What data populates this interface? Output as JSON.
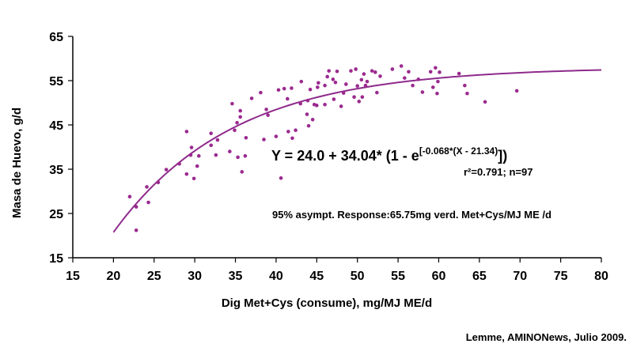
{
  "chart_data": {
    "type": "scatter",
    "xlabel": "Dig Met+Cys (consume), mg/MJ ME/d",
    "ylabel": "Masa de Huevo, g/d",
    "xlim": [
      15,
      80
    ],
    "ylim": [
      15,
      65
    ],
    "xticks": [
      "15",
      "20",
      "25",
      "30",
      "35",
      "40",
      "45",
      "50",
      "55",
      "60",
      "65",
      "70",
      "75",
      "80"
    ],
    "yticks": [
      "15",
      "25",
      "35",
      "45",
      "55",
      "65"
    ],
    "grid": false,
    "colors": {
      "points": "#9b2a8f",
      "curve": "#8e2a8c"
    },
    "equation": {
      "main": "Y = 24.0 + 34.04* (1 - e",
      "exponent": "[-0.068*(X - 21.34)",
      "close": "])"
    },
    "fit_stats": "r²=0.791; n=97",
    "asymptote_note": "95% asympt. Response:65.75mg verd. Met+Cys/MJ ME /d",
    "source": "Lemme, AMINONews, Julio 2009.",
    "curve": {
      "a": 24.0,
      "b": 34.04,
      "k": 0.068,
      "x0": 21.34,
      "x_from": 20,
      "x_to": 80
    },
    "points": [
      [
        22.0,
        28.8
      ],
      [
        22.8,
        21.2
      ],
      [
        22.8,
        26.5
      ],
      [
        24.1,
        31.0
      ],
      [
        24.3,
        27.5
      ],
      [
        25.5,
        32.0
      ],
      [
        26.5,
        34.9
      ],
      [
        28.1,
        36.2
      ],
      [
        29.0,
        43.5
      ],
      [
        29.0,
        33.9
      ],
      [
        29.5,
        38.2
      ],
      [
        29.6,
        39.9
      ],
      [
        29.9,
        32.9
      ],
      [
        30.3,
        35.7
      ],
      [
        30.5,
        38.0
      ],
      [
        32.0,
        43.1
      ],
      [
        32.0,
        40.4
      ],
      [
        32.6,
        38.2
      ],
      [
        32.8,
        41.6
      ],
      [
        34.3,
        39.0
      ],
      [
        34.6,
        49.8
      ],
      [
        34.9,
        43.8
      ],
      [
        35.2,
        45.5
      ],
      [
        35.3,
        37.7
      ],
      [
        35.6,
        48.2
      ],
      [
        35.6,
        46.8
      ],
      [
        35.8,
        34.4
      ],
      [
        36.2,
        38.0
      ],
      [
        36.3,
        42.1
      ],
      [
        37.0,
        51.0
      ],
      [
        38.1,
        52.3
      ],
      [
        38.5,
        41.7
      ],
      [
        38.8,
        48.5
      ],
      [
        39.0,
        47.2
      ],
      [
        40.0,
        42.4
      ],
      [
        40.3,
        52.9
      ],
      [
        40.6,
        33.0
      ],
      [
        41.0,
        53.2
      ],
      [
        41.4,
        50.9
      ],
      [
        41.5,
        43.5
      ],
      [
        41.9,
        53.3
      ],
      [
        42.0,
        42.0
      ],
      [
        42.4,
        43.8
      ],
      [
        43.0,
        49.8
      ],
      [
        43.1,
        54.8
      ],
      [
        43.8,
        47.4
      ],
      [
        44.0,
        44.8
      ],
      [
        44.2,
        53.0
      ],
      [
        44.5,
        46.2
      ],
      [
        44.7,
        49.6
      ],
      [
        45.0,
        49.4
      ],
      [
        45.1,
        53.5
      ],
      [
        45.2,
        54.5
      ],
      [
        46.0,
        53.9
      ],
      [
        46.3,
        55.9
      ],
      [
        46.5,
        57.2
      ],
      [
        47.0,
        55.3
      ],
      [
        47.1,
        50.8
      ],
      [
        47.3,
        54.6
      ],
      [
        47.5,
        57.1
      ],
      [
        48.0,
        49.2
      ],
      [
        48.3,
        52.2
      ],
      [
        48.6,
        54.2
      ],
      [
        49.2,
        57.2
      ],
      [
        49.6,
        51.3
      ],
      [
        49.8,
        57.6
      ],
      [
        50.0,
        53.8
      ],
      [
        50.2,
        50.3
      ],
      [
        50.5,
        55.2
      ],
      [
        50.6,
        51.3
      ],
      [
        50.8,
        56.5
      ],
      [
        51.0,
        53.9
      ],
      [
        51.2,
        54.8
      ],
      [
        51.8,
        57.2
      ],
      [
        52.2,
        56.9
      ],
      [
        52.4,
        52.3
      ],
      [
        52.8,
        56.0
      ],
      [
        54.3,
        57.6
      ],
      [
        55.4,
        58.3
      ],
      [
        55.8,
        55.6
      ],
      [
        56.3,
        57.0
      ],
      [
        56.8,
        53.9
      ],
      [
        57.5,
        55.3
      ],
      [
        58.0,
        52.4
      ],
      [
        59.0,
        57.0
      ],
      [
        59.3,
        53.5
      ],
      [
        59.6,
        57.9
      ],
      [
        59.8,
        52.1
      ],
      [
        59.9,
        54.8
      ],
      [
        60.1,
        56.9
      ],
      [
        62.5,
        56.6
      ],
      [
        63.2,
        53.9
      ],
      [
        63.5,
        52.1
      ],
      [
        65.7,
        50.2
      ],
      [
        69.6,
        52.7
      ],
      [
        46.0,
        49.6
      ],
      [
        43.9,
        50.5
      ]
    ]
  }
}
